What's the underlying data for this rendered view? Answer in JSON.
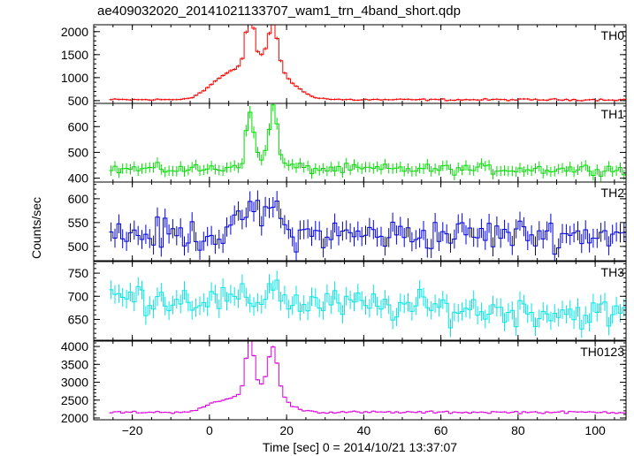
{
  "title": "ae409032020_20141021133707_wam1_trn_4band_short.qdp",
  "chart_data": {
    "type": "line",
    "title": "ae409032020_20141021133707_wam1_trn_4band_short.qdp",
    "xlabel": "Time [sec] 0 = 2014/10/21 13:37:07",
    "ylabel": "Counts/sec",
    "xlim": [
      -30,
      108
    ],
    "x_ticks": [
      -20,
      0,
      20,
      40,
      60,
      80,
      100
    ],
    "x_tick_labels": [
      "−20",
      "0",
      "20",
      "40",
      "60",
      "80",
      "100"
    ],
    "bin_width": 1,
    "x_start": -26,
    "x_end": 107,
    "panels": [
      {
        "name": "TH0",
        "color": "#ff0000",
        "ylim": [
          440,
          2150
        ],
        "y_ticks": [
          500,
          1000,
          1500,
          2000
        ],
        "y_tick_labels": [
          "500",
          "1000",
          "1500",
          "2000"
        ],
        "error_scale": 20,
        "curve": {
          "baseline": 520,
          "noise": 12,
          "components": [
            {
              "type": "gauss",
              "center": 10.5,
              "amp": 1100,
              "width": 1.0
            },
            {
              "type": "gauss",
              "center": 16.5,
              "amp": 850,
              "width": 1.2
            },
            {
              "type": "gauss",
              "center": 13.5,
              "amp": 900,
              "width": 6.0
            },
            {
              "type": "gauss",
              "center": 3.0,
              "amp": 300,
              "width": 4.0
            }
          ]
        }
      },
      {
        "name": "TH1",
        "color": "#00dd00",
        "ylim": [
          385,
          690
        ],
        "y_ticks": [
          400,
          500,
          600
        ],
        "y_tick_labels": [
          "400",
          "500",
          "600"
        ],
        "error_scale": 20,
        "curve": {
          "baseline": 435,
          "noise": 12,
          "components": [
            {
              "type": "gauss",
              "center": 10.5,
              "amp": 190,
              "width": 0.9
            },
            {
              "type": "gauss",
              "center": 16.5,
              "amp": 220,
              "width": 1.0
            },
            {
              "type": "gauss",
              "center": 13.5,
              "amp": 40,
              "width": 5.0
            }
          ]
        }
      },
      {
        "name": "TH2",
        "color": "#0000dd",
        "ylim": [
          470,
          635
        ],
        "y_ticks": [
          500,
          550,
          600
        ],
        "y_tick_labels": [
          "500",
          "550",
          "600"
        ],
        "error_scale": 20,
        "curve": {
          "baseline": 525,
          "noise": 20,
          "components": [
            {
              "type": "gauss",
              "center": 10.5,
              "amp": 60,
              "width": 2.0
            },
            {
              "type": "gauss",
              "center": 16.5,
              "amp": 70,
              "width": 1.5
            }
          ]
        }
      },
      {
        "name": "TH3",
        "color": "#00e5e5",
        "ylim": [
          605,
          775
        ],
        "y_ticks": [
          650,
          700,
          750
        ],
        "y_tick_labels": [
          "650",
          "700",
          "750"
        ],
        "error_scale": 20,
        "curve": {
          "baseline": 685,
          "noise": 20,
          "components": [
            {
              "type": "gauss",
              "center": 16.5,
              "amp": 45,
              "width": 1.5
            },
            {
              "type": "linear",
              "start": -26,
              "end": 107,
              "from": 15,
              "to": -25
            }
          ]
        }
      },
      {
        "name": "TH0123",
        "color": "#dd00dd",
        "ylim": [
          1950,
          4150
        ],
        "y_ticks": [
          2000,
          2500,
          3000,
          3500,
          4000
        ],
        "y_tick_labels": [
          "2000",
          "2500",
          "3000",
          "3500",
          "4000"
        ],
        "error_scale": 20,
        "curve": {
          "baseline": 2160,
          "noise": 20,
          "components": [
            {
              "type": "gauss",
              "center": 10.5,
              "amp": 1550,
              "width": 1.0
            },
            {
              "type": "gauss",
              "center": 16.5,
              "amp": 1250,
              "width": 1.2
            },
            {
              "type": "gauss",
              "center": 13.5,
              "amp": 700,
              "width": 5.0
            },
            {
              "type": "gauss",
              "center": 3.0,
              "amp": 250,
              "width": 4.0
            }
          ]
        }
      }
    ]
  }
}
